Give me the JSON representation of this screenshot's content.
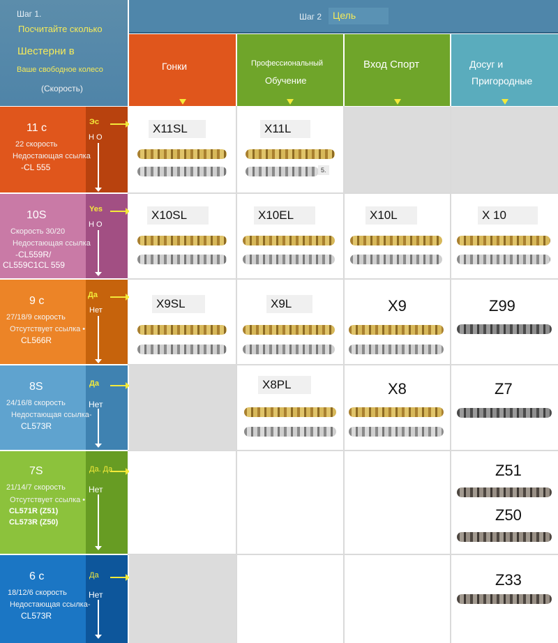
{
  "step1": {
    "title": "Шаг 1.",
    "line1": "Посчитайте сколько",
    "line2": "Шестерни в",
    "line3": "Ваше свободное колесо",
    "line4": "(Скорость)"
  },
  "step2": {
    "title": "Шаг 2",
    "goal": "Цель"
  },
  "columns": [
    {
      "label": "Гонки",
      "color": "#e0561c"
    },
    {
      "label1": "Профессиональный",
      "label2": "Обучение",
      "color": "#6fa52a"
    },
    {
      "label": "Вход Спорт",
      "color": "#6fa52a"
    },
    {
      "label1": "Досуг и",
      "label2": "Пригородные",
      "color": "#5aacbd"
    }
  ],
  "rows": [
    {
      "speed": "11 с",
      "sub": "22 скорость",
      "miss": "Недостающая ссылка",
      "cl": "-CL 555",
      "yes": "Эс",
      "no": "Н О",
      "color": "#e0561c"
    },
    {
      "speed": "10S",
      "sub": "Скорость 30/20",
      "miss": "Недостающая ссылка",
      "cl1": "-CL559R/",
      "cl2": "CL559C1CL 559",
      "yes": "Yes",
      "no": "Н О",
      "color": "#c97aa6"
    },
    {
      "speed": "9 с",
      "sub": "27/18/9 скорость",
      "miss": "Отсутствует ссылка •",
      "cl": "CL566R",
      "yes": "Да",
      "no": "Нет",
      "color": "#ec8427"
    },
    {
      "speed": "8S",
      "sub": "24/16/8 скорость",
      "miss": "Недостающая ссылка-",
      "cl": "CL573R",
      "yes": "Да",
      "no": "Нет",
      "color": "#5fa3cf"
    },
    {
      "speed": "7S",
      "sub": "21/14/7 скорость",
      "miss": "Отсутствует ссылка •",
      "cl1": "CL571R (Z51)",
      "cl2": "CL573R (Z50)",
      "yes": "Да. Да",
      "no": "Нет",
      "color": "#8cc23c"
    },
    {
      "speed": "6 с",
      "sub": "18/12/6 скорость",
      "miss": "Недостающая ссылка-",
      "cl": "CL573R",
      "yes": "Да",
      "no": "Нет",
      "color": "#1b76c4"
    }
  ],
  "models": {
    "r11": [
      "X11SL",
      "X11L"
    ],
    "r11_tag": "5.",
    "r10": [
      "X10SL",
      "X10EL",
      "X10L",
      "X 10"
    ],
    "r9": [
      "X9SL",
      "X9L",
      "X9",
      "Z99"
    ],
    "r8": [
      "X8PL",
      "X8",
      "Z7"
    ],
    "r7": [
      "Z51",
      "Z50"
    ],
    "r6": [
      "Z33"
    ]
  }
}
